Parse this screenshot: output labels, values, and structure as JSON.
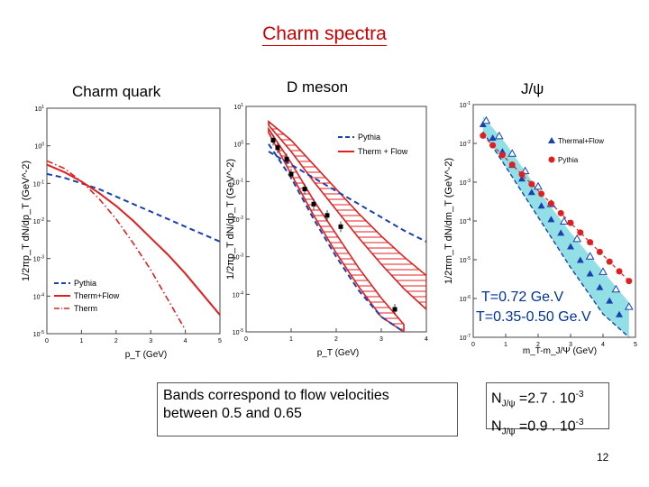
{
  "slide": {
    "title": "Charm spectra",
    "page_number": "12",
    "panel_titles": [
      "Charm quark",
      "D meson",
      "J/ψ"
    ],
    "bands_note_line1": "Bands correspond to flow velocities",
    "bands_note_line2": "between 0.5 and 0.65",
    "temp_line1": "T=0.72 Ge.V",
    "temp_line2": "T=0.35-0.50 Ge.V",
    "n_line1": {
      "prefix": "N",
      "sub": "J/ψ",
      "mid": " =2.7 . 10",
      "sup": "-3"
    },
    "n_line2": {
      "prefix": "N",
      "sub": "J/ψ",
      "mid": " =0.9 . 10",
      "sup": "-3"
    }
  },
  "colors": {
    "red": "#e02020",
    "blue": "#1a3fb0",
    "cyan": "#7fdbe0",
    "title": "#cc0000"
  },
  "chart_data": [
    {
      "type": "line",
      "panel": "charm-quark",
      "title": "Charm quark",
      "ylabel": "1/2πp_T dN/dp_T (GeV^-2)",
      "xlabel": "p_T (GeV)",
      "xlim": [
        0,
        5
      ],
      "ylim_log10": [
        -5,
        1
      ],
      "yticks": [
        "10^1",
        "10^0",
        "10^-1",
        "10^-2",
        "10^-3",
        "10^-4",
        "10^-5"
      ],
      "xticks": [
        "0",
        "1",
        "2",
        "3",
        "4",
        "5"
      ],
      "legend": [
        "Pythia",
        "Therm+Flow",
        "Therm"
      ],
      "series": [
        {
          "name": "Pythia",
          "style": "dashed",
          "color": "blue",
          "x": [
            0,
            0.5,
            1,
            1.5,
            2,
            2.5,
            3,
            3.5,
            4,
            4.5,
            5
          ],
          "log10y": [
            -0.75,
            -0.85,
            -1.0,
            -1.15,
            -1.35,
            -1.55,
            -1.75,
            -1.95,
            -2.15,
            -2.35,
            -2.55
          ]
        },
        {
          "name": "Therm+Flow",
          "style": "solid",
          "color": "red",
          "x": [
            0,
            0.5,
            1,
            1.5,
            2,
            2.5,
            3,
            3.5,
            4,
            4.5,
            5
          ],
          "log10y": [
            -0.5,
            -0.7,
            -0.95,
            -1.25,
            -1.6,
            -2.0,
            -2.45,
            -2.9,
            -3.4,
            -3.95,
            -4.5
          ]
        },
        {
          "name": "Therm",
          "style": "dashdot",
          "color": "red",
          "x": [
            0,
            0.5,
            1,
            1.5,
            2,
            2.5,
            3,
            3.5,
            4
          ],
          "log10y": [
            -0.4,
            -0.6,
            -0.95,
            -1.4,
            -1.95,
            -2.6,
            -3.3,
            -4.1,
            -4.9
          ]
        }
      ]
    },
    {
      "type": "line",
      "panel": "d-meson",
      "title": "D meson",
      "ylabel": "1/2πp_T dN/dp_T (GeV^-2)",
      "xlabel": "p_T (GeV)",
      "xlim": [
        0,
        4
      ],
      "ylim_log10": [
        -5,
        1
      ],
      "yticks": [
        "10^1",
        "10^0",
        "10^-1",
        "10^-2",
        "10^-3",
        "10^-4",
        "10^-5"
      ],
      "xticks": [
        "0",
        "1",
        "2",
        "3",
        "4"
      ],
      "legend": [
        "Pythia",
        "Therm + Flow"
      ],
      "series": [
        {
          "name": "Pythia (upper)",
          "style": "dashed",
          "color": "blue",
          "x": [
            0.5,
            1,
            1.5,
            2,
            2.5,
            3,
            3.5,
            4
          ],
          "log10y": [
            -0.2,
            -0.55,
            -0.9,
            -1.25,
            -1.6,
            -1.95,
            -2.3,
            -2.6
          ]
        },
        {
          "name": "Pythia (lower)",
          "style": "dashed",
          "color": "blue",
          "x": [
            0.5,
            1,
            1.5,
            2,
            2.5,
            3,
            3.5
          ],
          "log10y": [
            0.0,
            -0.9,
            -2.0,
            -3.0,
            -3.9,
            -4.6,
            -5.0
          ]
        },
        {
          "name": "Therm + Flow band (upper)",
          "style": "band",
          "color": "red",
          "x": [
            0.5,
            1,
            1.5,
            2,
            2.5,
            3,
            3.5,
            4
          ],
          "log10y": [
            0.6,
            0.1,
            -0.55,
            -1.2,
            -1.85,
            -2.45,
            -3.0,
            -3.5
          ]
        },
        {
          "name": "Therm + Flow band (lower)",
          "style": "band",
          "color": "red",
          "x": [
            0.5,
            1,
            1.5,
            2,
            2.5,
            3,
            3.5,
            4
          ],
          "log10y": [
            0.5,
            -0.2,
            -1.0,
            -1.75,
            -2.5,
            -3.2,
            -3.85,
            -4.4
          ]
        },
        {
          "name": "Therm + Flow band 2 (upper)",
          "style": "band",
          "color": "red",
          "x": [
            0.5,
            1,
            1.5,
            2,
            2.5,
            3,
            3.5
          ],
          "log10y": [
            0.4,
            -0.5,
            -1.5,
            -2.4,
            -3.3,
            -4.1,
            -4.8
          ]
        },
        {
          "name": "Therm + Flow band 2 (lower)",
          "style": "band",
          "color": "red",
          "x": [
            0.5,
            1,
            1.5,
            2,
            2.5,
            3,
            3.5
          ],
          "log10y": [
            0.3,
            -0.8,
            -1.9,
            -2.9,
            -3.8,
            -4.6,
            -5.0
          ]
        }
      ],
      "points": {
        "x": [
          0.6,
          0.7,
          0.9,
          1.0,
          1.3,
          1.5,
          1.8,
          2.1,
          3.3
        ],
        "log10y": [
          0.1,
          -0.1,
          -0.4,
          -0.8,
          -1.2,
          -1.6,
          -1.9,
          -2.2,
          -4.4
        ]
      }
    },
    {
      "type": "scatter",
      "panel": "jpsi",
      "title": "J/ψ",
      "ylabel": "1/2πm_T dN/dm_T (GeV^-2)",
      "xlabel": "m_T-m_J/Ψ (GeV)",
      "xlim": [
        0,
        5
      ],
      "ylim_log10": [
        -7,
        -1
      ],
      "yticks": [
        "10^-1",
        "10^-2",
        "10^-3",
        "10^-4",
        "10^-5",
        "10^-6",
        "10^-7"
      ],
      "xticks": [
        "0",
        "1",
        "2",
        "3",
        "4",
        "5"
      ],
      "legend": [
        "Thermal+Flow",
        "Pythia"
      ],
      "band": {
        "x": [
          0.3,
          1,
          2,
          3,
          4,
          4.8
        ],
        "log10y_upper": [
          -1.3,
          -2.0,
          -3.2,
          -4.3,
          -5.3,
          -6.1
        ],
        "log10y_lower": [
          -1.7,
          -2.6,
          -3.9,
          -5.2,
          -6.4,
          -7.0
        ]
      },
      "series": [
        {
          "name": "Thermal+Flow",
          "marker": "filled-triangle",
          "color": "blue",
          "x": [
            0.3,
            0.6,
            0.9,
            1.2,
            1.5,
            1.8,
            2.1,
            2.4,
            2.7,
            3.0,
            3.3,
            3.6,
            3.9,
            4.2,
            4.5
          ],
          "log10y": [
            -1.5,
            -1.85,
            -2.2,
            -2.55,
            -2.9,
            -3.25,
            -3.6,
            -3.95,
            -4.3,
            -4.65,
            -5.0,
            -5.35,
            -5.7,
            -6.05,
            -6.4
          ]
        },
        {
          "name": "Thermal+Flow (open)",
          "marker": "open-triangle",
          "color": "blue",
          "x": [
            0.4,
            0.8,
            1.2,
            1.6,
            2.0,
            2.4,
            2.8,
            3.2,
            3.6,
            4.0,
            4.4,
            4.8
          ],
          "log10y": [
            -1.4,
            -1.8,
            -2.25,
            -2.7,
            -3.1,
            -3.55,
            -4.0,
            -4.45,
            -4.9,
            -5.3,
            -5.75,
            -6.2
          ]
        },
        {
          "name": "Pythia",
          "marker": "filled-circle",
          "color": "red",
          "x": [
            0.3,
            0.6,
            0.9,
            1.2,
            1.5,
            1.8,
            2.1,
            2.4,
            2.7,
            3.0,
            3.3,
            3.6,
            3.9,
            4.2,
            4.5,
            4.8
          ],
          "log10y": [
            -1.8,
            -2.05,
            -2.3,
            -2.55,
            -2.8,
            -3.05,
            -3.3,
            -3.55,
            -3.8,
            -4.05,
            -4.3,
            -4.55,
            -4.8,
            -5.05,
            -5.3,
            -5.55
          ]
        }
      ]
    }
  ]
}
